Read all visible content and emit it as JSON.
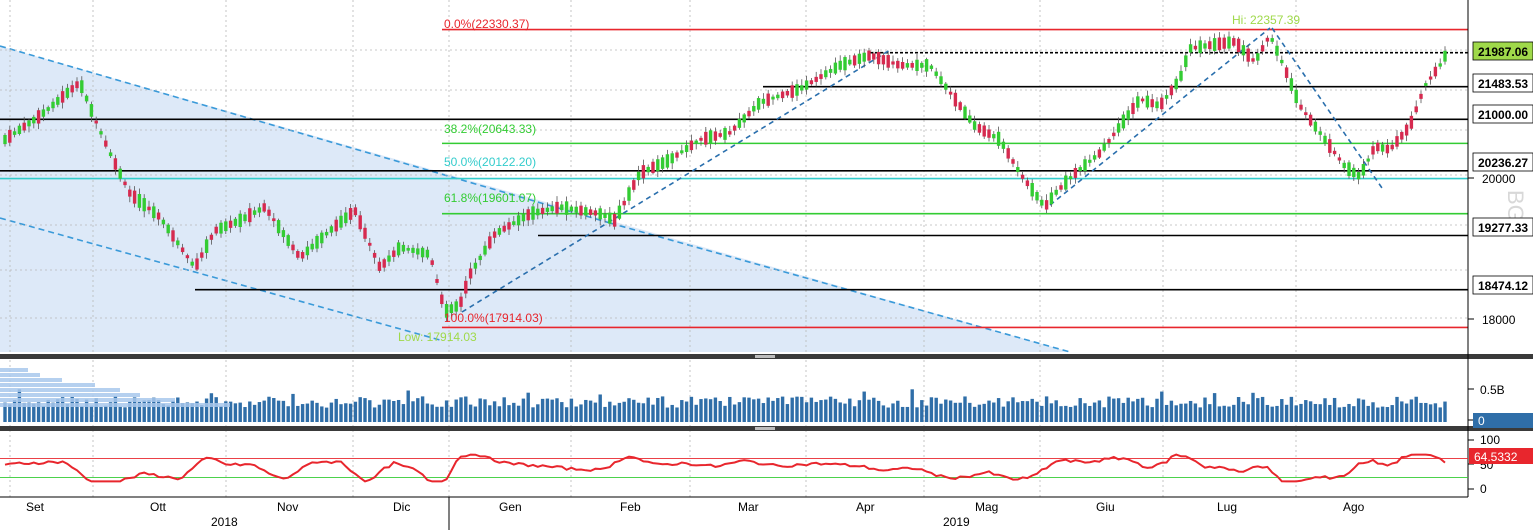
{
  "chart_data": {
    "type": "candlestick",
    "price_axis": {
      "ylim": [
        17550,
        22680
      ],
      "ticks": [
        18000,
        20000
      ]
    },
    "price_labels": [
      {
        "text": "21987.06",
        "color": "#9fd94a"
      },
      {
        "text": "21483.53",
        "color": "#ffffff"
      },
      {
        "text": "21000.00",
        "color": "#ffffff"
      },
      {
        "text": "20236.27",
        "color": "#ffffff"
      },
      {
        "text": "19277.33",
        "color": "#ffffff"
      },
      {
        "text": "18474.12",
        "color": "#ffffff"
      }
    ],
    "horizontal_levels": [
      {
        "value": 22330.37,
        "color": "#e8262d",
        "x_from": "Dic"
      },
      {
        "value": 21987.06,
        "color": "#000000",
        "x_from": "Apr"
      },
      {
        "value": 21483.53,
        "color": "#000000",
        "x_from": "Mar"
      },
      {
        "value": 21000.0,
        "color": "#000000",
        "x_from": "Sep"
      },
      {
        "value": 20643.33,
        "color": "#33cc33",
        "x_from": "Dic"
      },
      {
        "value": 20236.27,
        "color": "#000000",
        "x_from": "Sep"
      },
      {
        "value": 20122.2,
        "color": "#33cccc",
        "x_from": "Sep"
      },
      {
        "value": 19601.07,
        "color": "#33cc33",
        "x_from": "Dic"
      },
      {
        "value": 19277.33,
        "color": "#000000",
        "x_from": "Gen"
      },
      {
        "value": 18474.12,
        "color": "#000000",
        "x_from": "Ott"
      },
      {
        "value": 17914.03,
        "color": "#e8262d",
        "x_from": "Dic"
      }
    ],
    "fib_labels": [
      {
        "text": "0.0%(22330.37)",
        "color": "#e8262d"
      },
      {
        "text": "38.2%(20643.33)",
        "color": "#33cc33"
      },
      {
        "text": "50.0%(20122.20)",
        "color": "#33cccc"
      },
      {
        "text": "61.8%(19601.07)",
        "color": "#33cc33"
      },
      {
        "text": "100.0%(17914.03)",
        "color": "#e8262d"
      }
    ],
    "annotations": [
      {
        "text": "Hi: 22357.39",
        "color": "#9fd94a"
      },
      {
        "text": "Low: 17914.03",
        "color": "#9fd94a"
      }
    ],
    "watermark": "BG",
    "volume_panel": {
      "ticks": [
        "0.5B"
      ],
      "last_label": "0"
    },
    "rsi_panel": {
      "ticks": [
        100,
        50,
        0
      ],
      "last_label": "64.5332",
      "levels": [
        70,
        30
      ]
    },
    "x_months": [
      "Set",
      "Ott",
      "Nov",
      "Dic",
      "Gen",
      "Feb",
      "Mar",
      "Apr",
      "Mag",
      "Giu",
      "Lug",
      "Ago"
    ],
    "x_years": [
      "2018",
      "2019"
    ],
    "colors": {
      "up": "#33cc33",
      "down": "#d62a4f",
      "channel_fill": "#dde9f8",
      "trend": "#3a9ad9",
      "volume": "#2f6ea8",
      "rsi": "#e8262d"
    }
  }
}
